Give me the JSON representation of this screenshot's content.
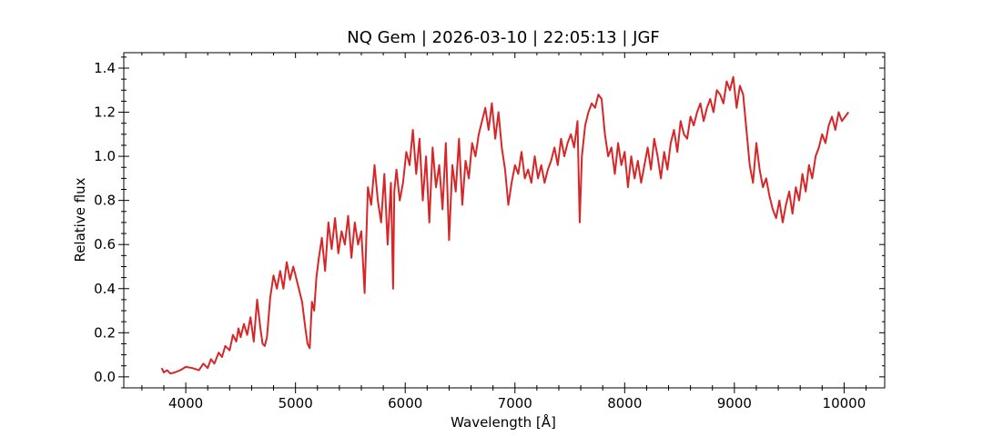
{
  "chart_data": {
    "type": "line",
    "title": "NQ Gem | 2026-03-10 | 22:05:13 | JGF",
    "xlabel": "Wavelength [Å]",
    "ylabel": "Relative flux",
    "xlim": [
      3435,
      10370
    ],
    "ylim": [
      -0.05,
      1.47
    ],
    "xticks": [
      4000,
      5000,
      6000,
      7000,
      8000,
      9000,
      10000
    ],
    "yticks": [
      0.0,
      0.2,
      0.4,
      0.6,
      0.8,
      1.0,
      1.2,
      1.4
    ],
    "ytick_labels": [
      "0.0",
      "0.2",
      "0.4",
      "0.6",
      "0.8",
      "1.0",
      "1.2",
      "1.4"
    ],
    "grid": false,
    "line_color": "#d62728",
    "series": [
      {
        "x": [
          3780,
          3800,
          3830,
          3860,
          3900,
          3950,
          4000,
          4060,
          4120,
          4160,
          4200,
          4230,
          4260,
          4300,
          4330,
          4360,
          4400,
          4430,
          4460,
          4480,
          4500,
          4530,
          4560,
          4590,
          4620,
          4650,
          4680,
          4700,
          4720,
          4740,
          4770,
          4800,
          4830,
          4860,
          4890,
          4920,
          4950,
          4980,
          5000,
          5030,
          5060,
          5090,
          5110,
          5130,
          5150,
          5170,
          5190,
          5210,
          5240,
          5270,
          5300,
          5330,
          5360,
          5390,
          5420,
          5450,
          5480,
          5510,
          5540,
          5570,
          5600,
          5630,
          5660,
          5690,
          5720,
          5750,
          5780,
          5810,
          5840,
          5870,
          5890,
          5900,
          5920,
          5950,
          5980,
          6010,
          6040,
          6070,
          6100,
          6130,
          6160,
          6190,
          6220,
          6250,
          6280,
          6310,
          6340,
          6370,
          6400,
          6430,
          6460,
          6490,
          6520,
          6550,
          6580,
          6610,
          6640,
          6670,
          6700,
          6730,
          6760,
          6790,
          6820,
          6850,
          6880,
          6910,
          6940,
          6970,
          7000,
          7030,
          7060,
          7090,
          7120,
          7150,
          7180,
          7210,
          7240,
          7270,
          7300,
          7330,
          7360,
          7390,
          7420,
          7450,
          7480,
          7510,
          7540,
          7570,
          7590,
          7610,
          7640,
          7670,
          7700,
          7730,
          7760,
          7790,
          7820,
          7850,
          7880,
          7910,
          7940,
          7970,
          8000,
          8030,
          8060,
          8090,
          8120,
          8150,
          8180,
          8210,
          8240,
          8270,
          8300,
          8330,
          8360,
          8390,
          8420,
          8450,
          8480,
          8510,
          8540,
          8570,
          8600,
          8630,
          8660,
          8690,
          8720,
          8750,
          8780,
          8810,
          8840,
          8870,
          8900,
          8930,
          8960,
          8990,
          9020,
          9050,
          9080,
          9110,
          9140,
          9170,
          9200,
          9230,
          9260,
          9290,
          9320,
          9350,
          9380,
          9410,
          9440,
          9470,
          9500,
          9530,
          9560,
          9590,
          9620,
          9650,
          9680,
          9710,
          9740,
          9770,
          9800,
          9830,
          9860,
          9890,
          9920,
          9950,
          9980,
          10010,
          10040
        ],
        "y": [
          0.04,
          0.02,
          0.03,
          0.015,
          0.02,
          0.03,
          0.045,
          0.04,
          0.03,
          0.06,
          0.04,
          0.08,
          0.06,
          0.11,
          0.09,
          0.14,
          0.12,
          0.19,
          0.16,
          0.22,
          0.18,
          0.24,
          0.19,
          0.27,
          0.16,
          0.35,
          0.22,
          0.15,
          0.14,
          0.18,
          0.36,
          0.46,
          0.4,
          0.48,
          0.4,
          0.52,
          0.44,
          0.5,
          0.46,
          0.4,
          0.34,
          0.22,
          0.15,
          0.13,
          0.34,
          0.3,
          0.45,
          0.53,
          0.63,
          0.48,
          0.7,
          0.58,
          0.72,
          0.56,
          0.66,
          0.6,
          0.73,
          0.54,
          0.7,
          0.6,
          0.66,
          0.38,
          0.86,
          0.78,
          0.96,
          0.8,
          0.7,
          0.92,
          0.6,
          0.88,
          0.4,
          0.84,
          0.94,
          0.8,
          0.88,
          1.02,
          0.96,
          1.12,
          0.92,
          1.08,
          0.8,
          1.0,
          0.7,
          1.04,
          0.86,
          0.96,
          0.76,
          1.06,
          0.62,
          0.96,
          0.84,
          1.08,
          0.78,
          0.98,
          0.9,
          1.06,
          1.0,
          1.1,
          1.16,
          1.22,
          1.12,
          1.24,
          1.08,
          1.2,
          1.04,
          0.94,
          0.78,
          0.88,
          0.96,
          0.92,
          1.02,
          0.9,
          0.94,
          0.88,
          1.0,
          0.9,
          0.96,
          0.88,
          0.94,
          0.98,
          1.04,
          0.96,
          1.08,
          1.0,
          1.06,
          1.1,
          1.04,
          1.16,
          0.7,
          1.0,
          1.14,
          1.2,
          1.24,
          1.22,
          1.28,
          1.26,
          1.1,
          1.0,
          1.04,
          0.92,
          1.06,
          0.96,
          1.02,
          0.86,
          1.0,
          0.9,
          0.98,
          0.88,
          0.96,
          1.04,
          0.94,
          1.08,
          1.0,
          0.9,
          1.02,
          0.94,
          1.06,
          1.12,
          1.02,
          1.16,
          1.1,
          1.08,
          1.18,
          1.14,
          1.2,
          1.24,
          1.16,
          1.22,
          1.26,
          1.2,
          1.3,
          1.28,
          1.24,
          1.34,
          1.3,
          1.36,
          1.22,
          1.32,
          1.28,
          1.12,
          0.96,
          0.88,
          1.06,
          0.94,
          0.86,
          0.9,
          0.82,
          0.76,
          0.72,
          0.8,
          0.7,
          0.78,
          0.84,
          0.74,
          0.86,
          0.8,
          0.92,
          0.84,
          0.96,
          0.9,
          1.0,
          1.04,
          1.1,
          1.06,
          1.14,
          1.18,
          1.12,
          1.2,
          1.16,
          1.18,
          1.2
        ]
      }
    ]
  }
}
